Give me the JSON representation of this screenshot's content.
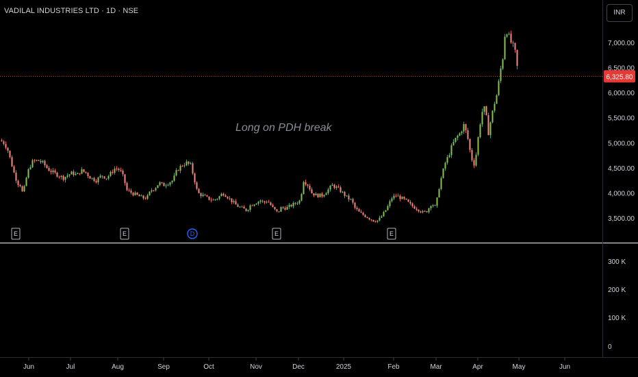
{
  "header": {
    "title": "VADILAL INDUSTRIES LTD · 1D · NSE",
    "currency": "INR"
  },
  "annotation": "Long on PDH break",
  "colors": {
    "up": "#26a69a",
    "down": "#ef5350",
    "bullish_body": "#8bc34a",
    "bearish_body": "#f28b82",
    "last_price": "#e53935",
    "dividend": "#2962ff"
  },
  "chart_data": {
    "type": "candlestick",
    "price_axis": {
      "ticks": [
        3500,
        4000,
        4500,
        5000,
        5500,
        6000,
        6500,
        7000
      ],
      "tick_labels": [
        "3,500.00",
        "4,000.00",
        "4,500.00",
        "5,000.00",
        "5,500.00",
        "6,000.00",
        "6,500.00",
        "7,000.00"
      ],
      "ylim": [
        3050,
        7500
      ]
    },
    "volume_axis": {
      "ticks": [
        0,
        100000,
        200000,
        300000
      ],
      "tick_labels": [
        "0",
        "100 K",
        "200 K",
        "300 K"
      ]
    },
    "time_axis": [
      "Jun",
      "Jul",
      "Aug",
      "Sep",
      "Oct",
      "Nov",
      "Dec",
      "2025",
      "Feb",
      "Mar",
      "Apr",
      "May",
      "Jun"
    ],
    "last_price": 6325.8,
    "last_price_label": "6,325.80",
    "event_markers": [
      {
        "label": "E",
        "kind": "earnings",
        "month": "May"
      },
      {
        "label": "E",
        "kind": "earnings",
        "month": "Aug"
      },
      {
        "label": "D",
        "kind": "dividend",
        "month": "Sep"
      },
      {
        "label": "E",
        "kind": "earnings",
        "month": "Nov"
      },
      {
        "label": "E",
        "kind": "earnings",
        "month": "Feb"
      }
    ],
    "price_path": [
      [
        0,
        5050
      ],
      [
        5,
        5000
      ],
      [
        10,
        4900
      ],
      [
        15,
        4650
      ],
      [
        20,
        4400
      ],
      [
        25,
        4200
      ],
      [
        30,
        4150
      ],
      [
        33,
        3950
      ],
      [
        37,
        4250
      ],
      [
        42,
        4500
      ],
      [
        47,
        4620
      ],
      [
        55,
        4650
      ],
      [
        62,
        4600
      ],
      [
        70,
        4470
      ],
      [
        78,
        4400
      ],
      [
        85,
        4350
      ],
      [
        92,
        4300
      ],
      [
        98,
        4350
      ],
      [
        105,
        4400
      ],
      [
        112,
        4350
      ],
      [
        118,
        4450
      ],
      [
        125,
        4400
      ],
      [
        132,
        4300
      ],
      [
        140,
        4250
      ],
      [
        148,
        4350
      ],
      [
        155,
        4300
      ],
      [
        162,
        4400
      ],
      [
        168,
        4500
      ],
      [
        175,
        4450
      ],
      [
        180,
        4300
      ],
      [
        185,
        4050
      ],
      [
        192,
        4000
      ],
      [
        200,
        3950
      ],
      [
        208,
        3900
      ],
      [
        214,
        3900
      ],
      [
        220,
        4050
      ],
      [
        226,
        4100
      ],
      [
        232,
        4200
      ],
      [
        238,
        4150
      ],
      [
        245,
        4200
      ],
      [
        252,
        4250
      ],
      [
        258,
        4450
      ],
      [
        265,
        4550
      ],
      [
        272,
        4600
      ],
      [
        278,
        4550
      ],
      [
        283,
        4300
      ],
      [
        288,
        4000
      ],
      [
        295,
        3950
      ],
      [
        302,
        3900
      ],
      [
        310,
        3850
      ],
      [
        318,
        3900
      ],
      [
        325,
        4000
      ],
      [
        330,
        3950
      ],
      [
        337,
        3850
      ],
      [
        345,
        3750
      ],
      [
        352,
        3700
      ],
      [
        360,
        3650
      ],
      [
        365,
        3750
      ],
      [
        372,
        3800
      ],
      [
        380,
        3850
      ],
      [
        385,
        3800
      ],
      [
        390,
        3850
      ],
      [
        398,
        3700
      ],
      [
        405,
        3600
      ],
      [
        410,
        3700
      ],
      [
        418,
        3700
      ],
      [
        425,
        3750
      ],
      [
        432,
        3800
      ],
      [
        438,
        3850
      ],
      [
        443,
        4250
      ],
      [
        450,
        4150
      ],
      [
        455,
        4000
      ],
      [
        462,
        3950
      ],
      [
        470,
        3950
      ],
      [
        478,
        4050
      ],
      [
        485,
        4150
      ],
      [
        492,
        4100
      ],
      [
        500,
        4000
      ],
      [
        507,
        3900
      ],
      [
        513,
        3850
      ],
      [
        518,
        3700
      ],
      [
        525,
        3600
      ],
      [
        532,
        3550
      ],
      [
        538,
        3500
      ],
      [
        545,
        3450
      ],
      [
        552,
        3450
      ],
      [
        558,
        3550
      ],
      [
        565,
        3700
      ],
      [
        572,
        3900
      ],
      [
        578,
        3950
      ],
      [
        585,
        3900
      ],
      [
        592,
        3850
      ],
      [
        600,
        3750
      ],
      [
        607,
        3700
      ],
      [
        613,
        3650
      ],
      [
        618,
        3600
      ],
      [
        624,
        3650
      ],
      [
        630,
        3800
      ],
      [
        636,
        3700
      ],
      [
        640,
        4050
      ],
      [
        645,
        4350
      ],
      [
        650,
        4600
      ],
      [
        655,
        4750
      ],
      [
        660,
        4950
      ],
      [
        666,
        5100
      ],
      [
        672,
        5200
      ],
      [
        677,
        5350
      ],
      [
        682,
        5150
      ],
      [
        688,
        4700
      ],
      [
        693,
        4550
      ],
      [
        698,
        5100
      ],
      [
        703,
        5600
      ],
      [
        708,
        5700
      ],
      [
        713,
        5200
      ],
      [
        718,
        5550
      ],
      [
        722,
        5800
      ],
      [
        726,
        6000
      ],
      [
        730,
        6400
      ],
      [
        734,
        6700
      ],
      [
        738,
        7300
      ],
      [
        742,
        7150
      ],
      [
        746,
        7000
      ],
      [
        750,
        6900
      ],
      [
        754,
        6700
      ],
      [
        756,
        6326
      ]
    ]
  }
}
